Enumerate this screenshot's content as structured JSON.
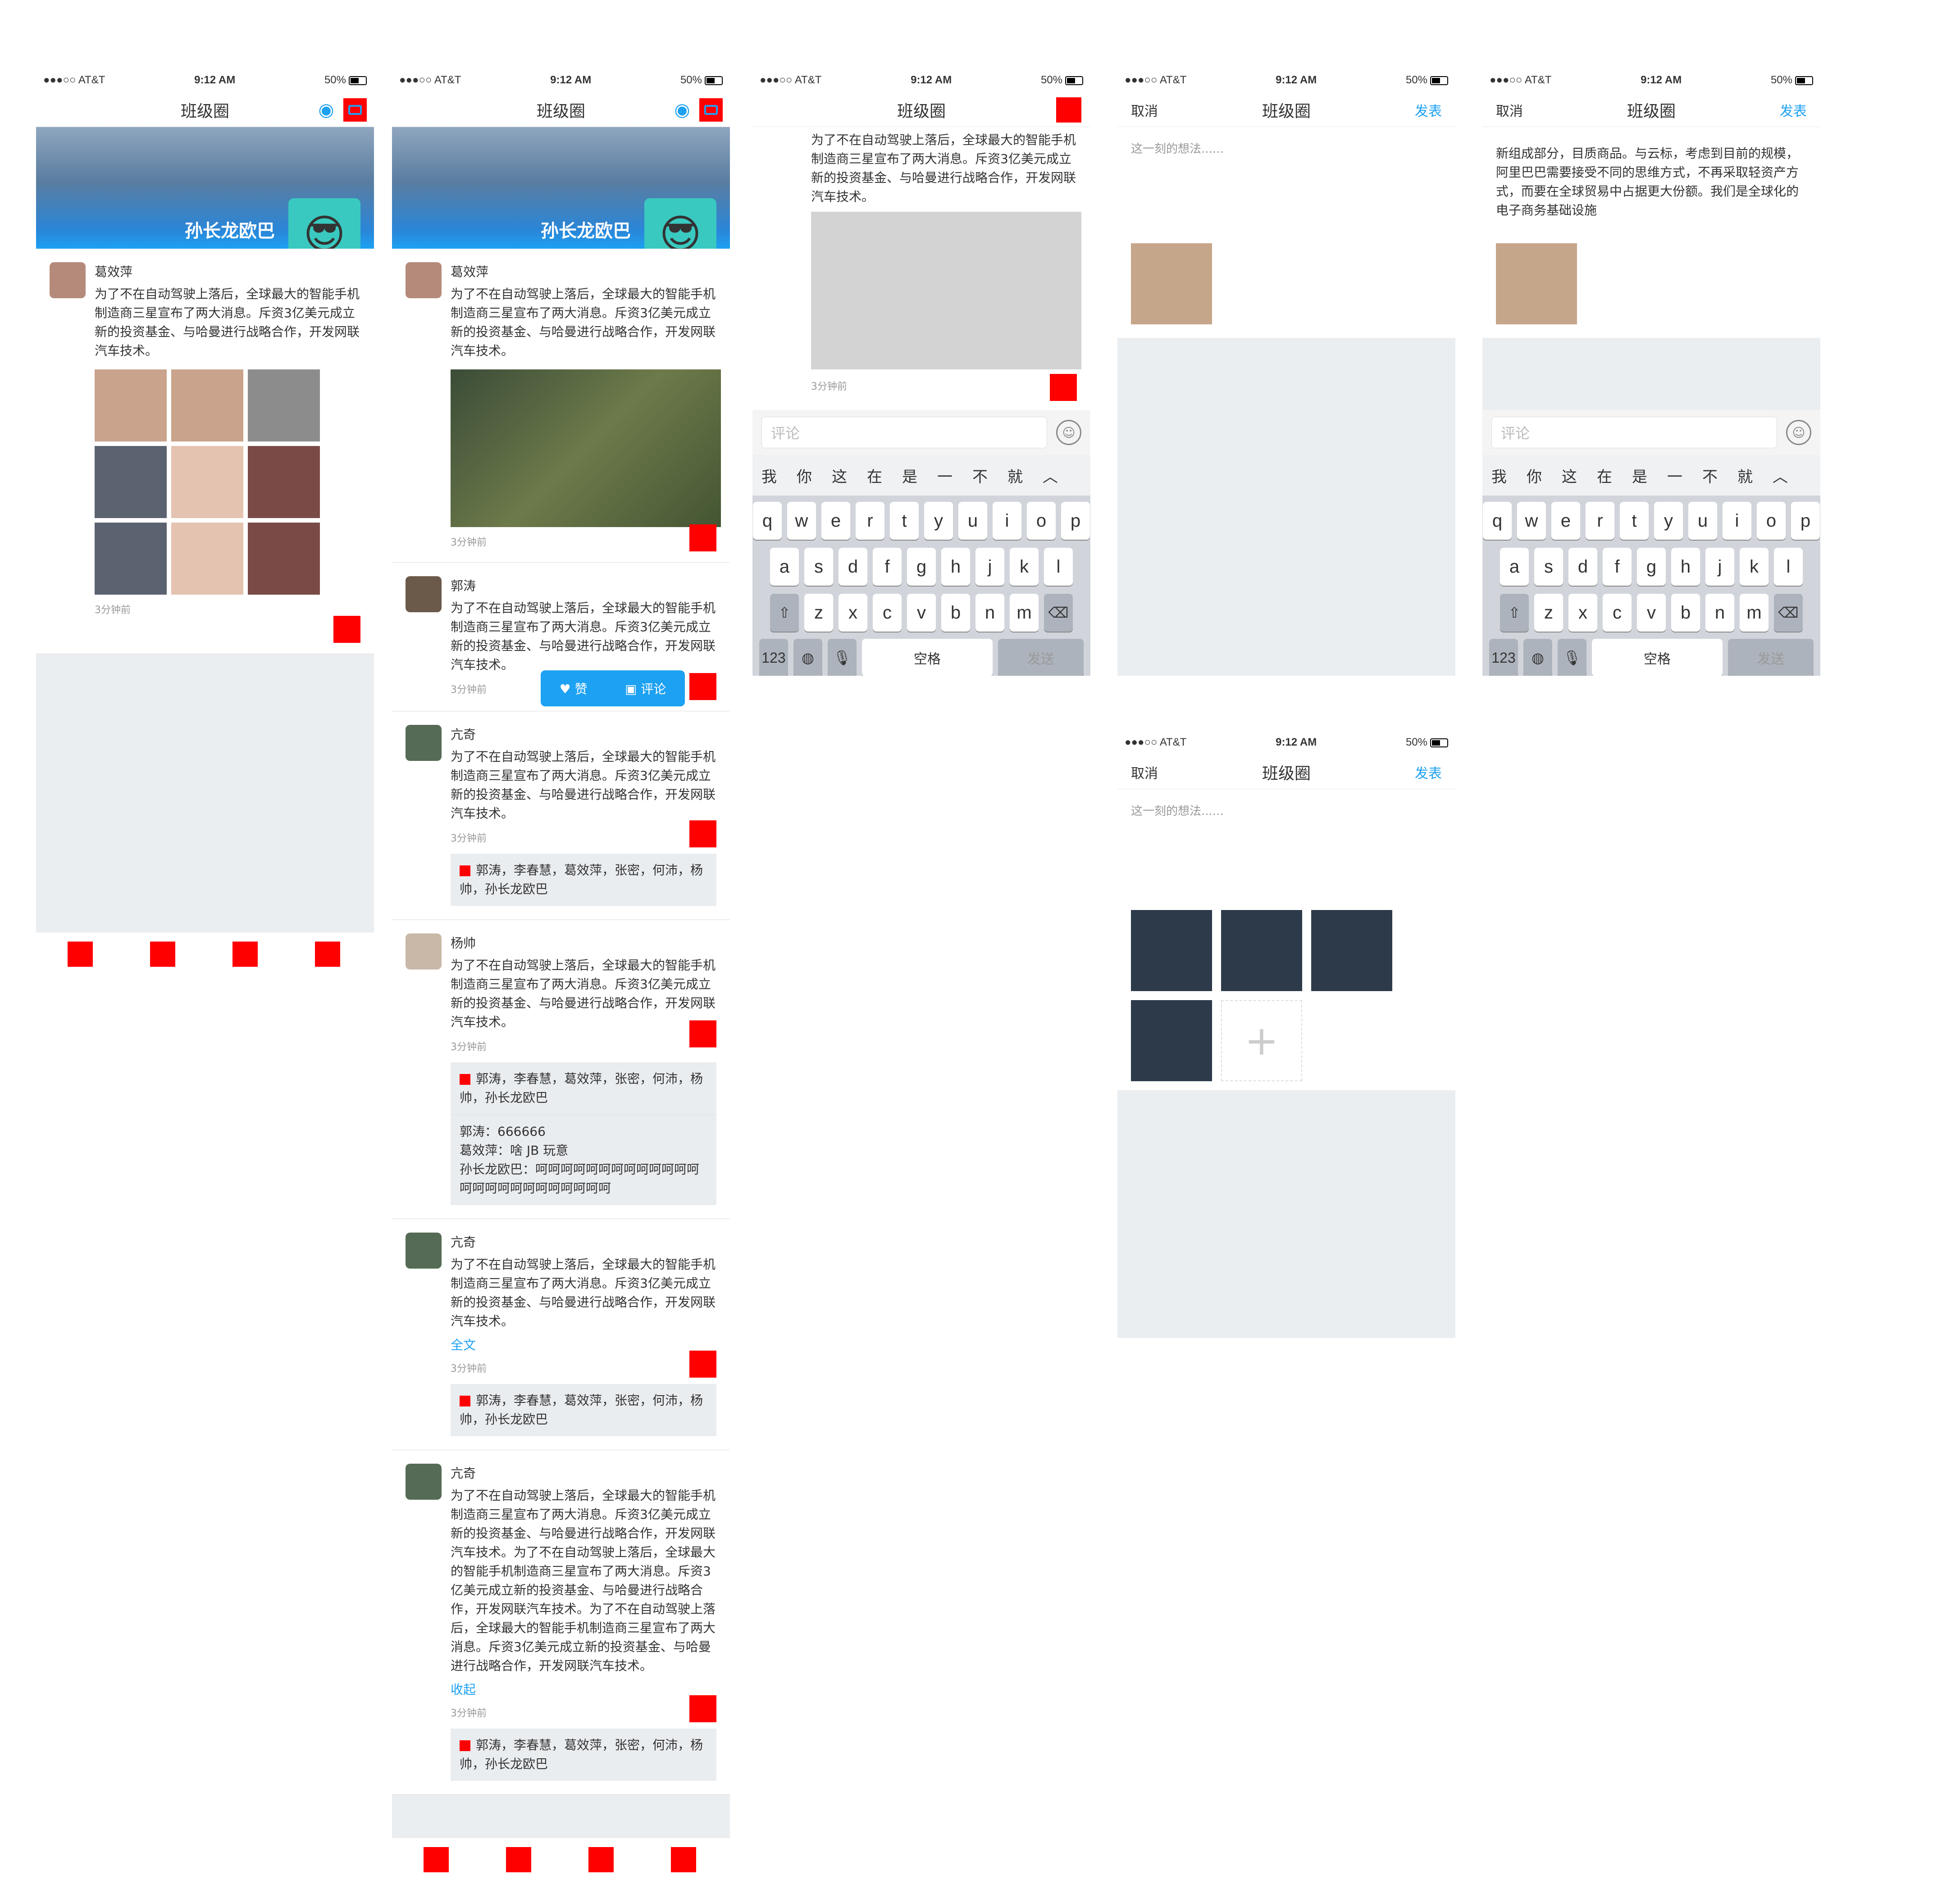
{
  "status": {
    "carrier": "●●●○○ AT&T",
    "time": "9:12 AM",
    "battery": "50%"
  },
  "feed": {
    "title": "班级圈",
    "cover_name": "孙长龙欧巴",
    "post_text": "为了不在自动驾驶上落后，全球最大的智能手机制造商三星宣布了两大消息。斥资3亿美元成立新的投资基金、与哈曼进行战略合作，开发网联汽车技术。",
    "long_text": "为了不在自动驾驶上落后，全球最大的智能手机制造商三星宣布了两大消息。斥资3亿美元成立新的投资基金、与哈曼进行战略合作，开发网联汽车技术。为了不在自动驾驶上落后，全球最大的智能手机制造商三星宣布了两大消息。斥资3亿美元成立新的投资基金、与哈曼进行战略合作，开发网联汽车技术。为了不在自动驾驶上落后，全球最大的智能手机制造商三星宣布了两大消息。斥资3亿美元成立新的投资基金、与哈曼进行战略合作，开发网联汽车技术。",
    "time": "3分钟前",
    "likes": "郭涛，李春慧，葛效萍，张密，何沛，杨帅，孙长龙欧巴",
    "like_btn": "赞",
    "comment_btn": "评论",
    "full_text": "全文",
    "collapse": "收起",
    "names": [
      "葛效萍",
      "郭涛",
      "亢奇",
      "杨帅",
      "亢奇",
      "亢奇"
    ],
    "comments": [
      "郭涛：666666",
      "葛效萍：啥 JB 玩意",
      "孙长龙欧巴：呵呵呵呵呵呵呵呵呵呵呵呵呵呵呵呵呵呵呵呵呵呵呵呵呵"
    ]
  },
  "keyboard": {
    "comment_placeholder": "评论",
    "candidates": [
      "我",
      "你",
      "这",
      "在",
      "是",
      "一",
      "不",
      "就"
    ],
    "row1": [
      "q",
      "w",
      "e",
      "r",
      "t",
      "y",
      "u",
      "i",
      "o",
      "p"
    ],
    "row2": [
      "a",
      "s",
      "d",
      "f",
      "g",
      "h",
      "j",
      "k",
      "l"
    ],
    "row3": [
      "z",
      "x",
      "c",
      "v",
      "b",
      "n",
      "m"
    ],
    "num": "123",
    "space": "空格",
    "send": "发送",
    "shift": "⇧",
    "del": "⌫",
    "globe": "◍",
    "mic": "🎙",
    "caret": "︿",
    "emoji": "☺"
  },
  "compose": {
    "title": "班级圈",
    "cancel": "取消",
    "publish": "发表",
    "placeholder": "这一刻的想法......",
    "typed": "新组成部分，目质商品。与云标，考虑到目前的规模，阿里巴巴需要接受不同的思维方式，不再采取轻资产方式，而要在全球贸易中占据更大份额。我们是全球化的电子商务基础设施",
    "add": "+"
  },
  "icons": {
    "camera": "camera-icon",
    "heart": "heart-icon",
    "comment": "comment-icon"
  },
  "colors": {
    "accent": "#1da1f2",
    "bg": "#ebeef1",
    "marker": "#ff0000"
  }
}
